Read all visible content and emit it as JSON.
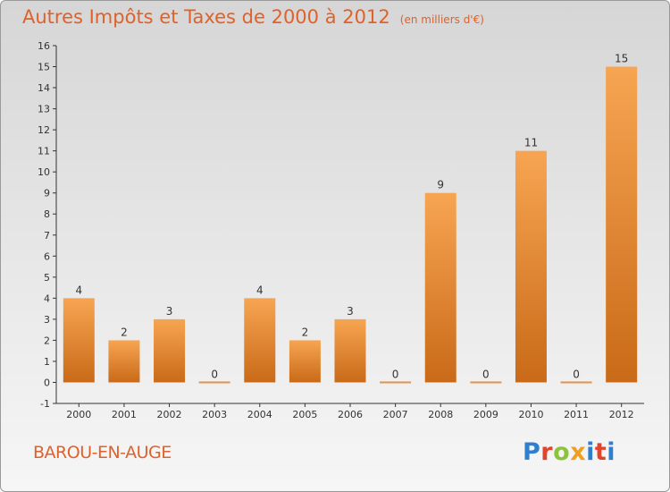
{
  "header": {
    "title": "Autres Impôts et Taxes de 2000 à 2012",
    "unit": "(en milliers d'€)"
  },
  "commune": "BAROU-EN-AUGE",
  "logo": {
    "text": "Proxiti"
  },
  "colors": {
    "bar_light": "#f7a552",
    "bar_dark": "#c96a18",
    "title": "#e0612a"
  },
  "chart_data": {
    "type": "bar",
    "title": "Autres Impôts et Taxes de 2000 à 2012",
    "subtitle": "(en milliers d'€)",
    "categories": [
      "2000",
      "2001",
      "2002",
      "2003",
      "2004",
      "2005",
      "2006",
      "2007",
      "2008",
      "2009",
      "2010",
      "2011",
      "2012"
    ],
    "values": [
      4,
      2,
      3,
      0,
      4,
      2,
      3,
      0,
      9,
      0,
      11,
      0,
      15
    ],
    "ylim": [
      -1,
      16
    ],
    "yticks": [
      -1,
      0,
      1,
      2,
      3,
      4,
      5,
      6,
      7,
      8,
      9,
      10,
      11,
      12,
      13,
      14,
      15,
      16
    ],
    "grid": false
  }
}
